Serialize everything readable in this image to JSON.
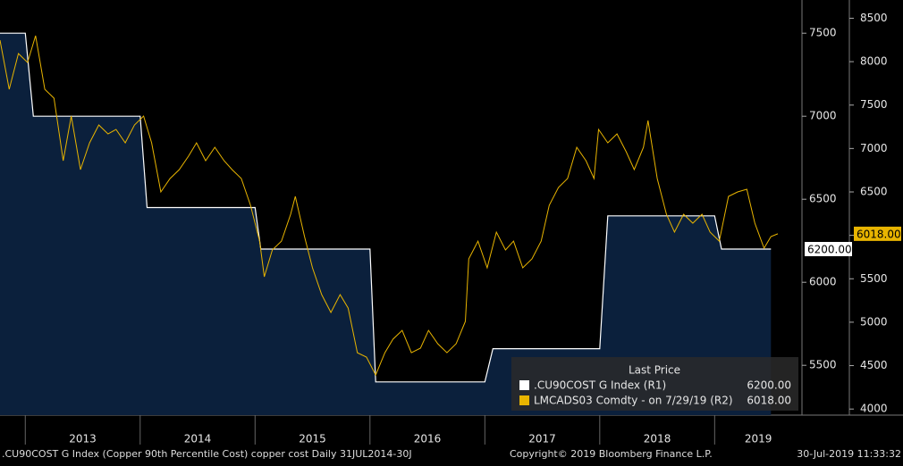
{
  "chart_data": {
    "type": "line",
    "xlim": [
      2012.78,
      2019.76
    ],
    "xticks": [
      {
        "value": 2013.5,
        "label": "2013"
      },
      {
        "value": 2014.5,
        "label": "2014"
      },
      {
        "value": 2015.5,
        "label": "2015"
      },
      {
        "value": 2016.5,
        "label": "2016"
      },
      {
        "value": 2017.5,
        "label": "2017"
      },
      {
        "value": 2018.5,
        "label": "2018"
      },
      {
        "value": 2019.38,
        "label": "2019"
      }
    ],
    "ylim": [
      5200,
      7700
    ],
    "yticks": [
      5500,
      6000,
      6500,
      7000,
      7500
    ],
    "y2lim": [
      3930,
      8710
    ],
    "y2ticks": [
      4000,
      4500,
      5000,
      5500,
      6000,
      6500,
      7000,
      7500,
      8000,
      8500
    ],
    "legend_title": "Last Price",
    "series": [
      {
        "name": ".CU90COST G Index  (R1)",
        "color": "#ffffff",
        "fill": "#0b203c",
        "last_label": "6200.00",
        "x": [
          2012.78,
          2013.0,
          2013.07,
          2014.0,
          2014.06,
          2015.0,
          2015.05,
          2016.0,
          2016.05,
          2017.0,
          2017.07,
          2018.0,
          2018.07,
          2019.0,
          2019.06,
          2019.49
        ],
        "values": [
          7500,
          7500,
          7000,
          7000,
          6450,
          6450,
          6200,
          6200,
          5400,
          5400,
          5600,
          5600,
          6400,
          6400,
          6200,
          6200
        ]
      },
      {
        "name": "LMCADS03 Comdty -  on 7/29/19  (R2)",
        "color": "#e8b400",
        "axis": "y2",
        "last_label": "6018.00",
        "x": [
          2012.78,
          2012.86,
          2012.94,
          2013.02,
          2013.09,
          2013.17,
          2013.25,
          2013.33,
          2013.4,
          2013.48,
          2013.56,
          2013.64,
          2013.72,
          2013.79,
          2013.87,
          2013.95,
          2014.03,
          2014.1,
          2014.18,
          2014.26,
          2014.34,
          2014.42,
          2014.49,
          2014.57,
          2014.65,
          2014.73,
          2014.8,
          2014.88,
          2014.96,
          2015.04,
          2015.08,
          2015.15,
          2015.23,
          2015.31,
          2015.35,
          2015.43,
          2015.5,
          2015.58,
          2015.66,
          2015.74,
          2015.81,
          2015.89,
          2015.97,
          2016.05,
          2016.13,
          2016.2,
          2016.28,
          2016.36,
          2016.44,
          2016.51,
          2016.59,
          2016.67,
          2016.75,
          2016.83,
          2016.86,
          2016.94,
          2017.02,
          2017.1,
          2017.18,
          2017.25,
          2017.33,
          2017.41,
          2017.49,
          2017.56,
          2017.64,
          2017.72,
          2017.8,
          2017.88,
          2017.95,
          2017.99,
          2018.07,
          2018.15,
          2018.23,
          2018.3,
          2018.38,
          2018.42,
          2018.5,
          2018.58,
          2018.65,
          2018.73,
          2018.81,
          2018.89,
          2018.96,
          2019.04,
          2019.12,
          2019.2,
          2019.28,
          2019.35,
          2019.43,
          2019.49,
          2019.55
        ],
        "values": [
          8247,
          7682,
          8093,
          7990,
          8299,
          7682,
          7579,
          6860,
          7374,
          6757,
          7065,
          7271,
          7168,
          7219,
          7065,
          7271,
          7374,
          7065,
          6500,
          6654,
          6757,
          6911,
          7065,
          6860,
          7014,
          6860,
          6757,
          6654,
          6346,
          5934,
          5523,
          5832,
          5934,
          6243,
          6448,
          5986,
          5626,
          5318,
          5112,
          5318,
          5163,
          4649,
          4598,
          4392,
          4649,
          4804,
          4906,
          4649,
          4701,
          4906,
          4752,
          4649,
          4752,
          5009,
          5729,
          5934,
          5626,
          6037,
          5832,
          5934,
          5626,
          5729,
          5934,
          6346,
          6551,
          6654,
          7014,
          6860,
          6654,
          7219,
          7065,
          7168,
          6962,
          6757,
          7014,
          7322,
          6654,
          6243,
          6037,
          6243,
          6140,
          6243,
          6037,
          5934,
          6448,
          6500,
          6531,
          6140,
          5852,
          5986,
          6018
        ]
      }
    ],
    "footer": {
      "left": ".CU90COST G Index (Copper 90th Percentile Cost) copper cost  Daily 31JUL2014-30J",
      "center": "Copyright© 2019 Bloomberg Finance L.P.",
      "right": "30-Jul-2019 11:33:32"
    }
  }
}
